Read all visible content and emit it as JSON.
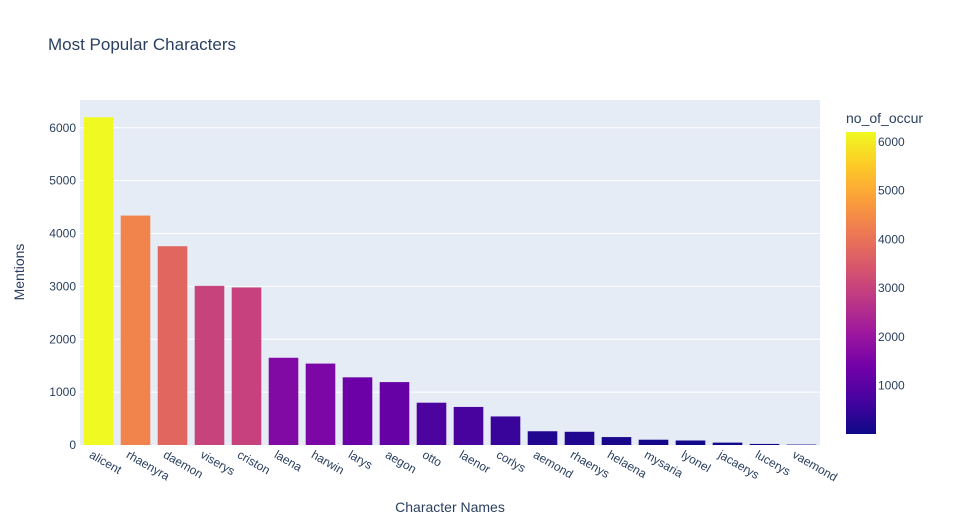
{
  "chart_data": {
    "type": "bar",
    "title": "Most Popular Characters",
    "xlabel": "Character Names",
    "ylabel": "Mentions",
    "categories": [
      "alicent",
      "rhaenyra",
      "daemon",
      "viserys",
      "criston",
      "laena",
      "harwin",
      "larys",
      "aegon",
      "otto",
      "laenor",
      "corlys",
      "aemond",
      "rhaenys",
      "helaena",
      "mysaria",
      "lyonel",
      "jacaerys",
      "lucerys",
      "vaemond"
    ],
    "values": [
      6200,
      4340,
      3760,
      3010,
      2980,
      1650,
      1540,
      1280,
      1190,
      800,
      720,
      540,
      260,
      250,
      150,
      100,
      85,
      45,
      20,
      8
    ],
    "ylim": [
      0,
      6526
    ],
    "yticks": [
      0,
      1000,
      2000,
      3000,
      4000,
      5000,
      6000
    ],
    "grid": true,
    "colorbar": {
      "title": "no_of_occur",
      "ticks": [
        1000,
        2000,
        3000,
        4000,
        5000,
        6000
      ],
      "range": [
        8,
        6200
      ],
      "colorscale": [
        "#0d0887",
        "#46039f",
        "#7201a8",
        "#9c179e",
        "#bd3786",
        "#d8576b",
        "#ed7953",
        "#fb9f3a",
        "#fdca26",
        "#f0f921"
      ]
    },
    "colors": {
      "plot_bg": "#e5ecf6",
      "grid": "#ffffff",
      "text": "#2a3f5f"
    }
  }
}
